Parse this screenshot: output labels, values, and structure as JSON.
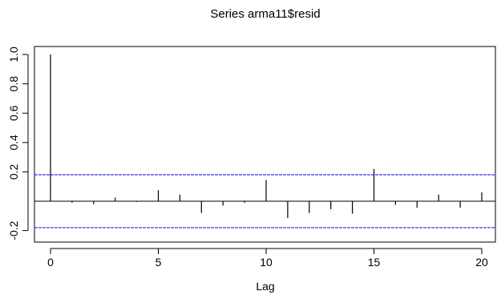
{
  "chart_data": {
    "type": "acf",
    "title": "Series  arma11$resid",
    "xlabel": "Lag",
    "ylabel": "",
    "xlim": [
      -0.5,
      20.3
    ],
    "ylim": [
      -0.2,
      1.0
    ],
    "x_ticks": [
      0,
      5,
      10,
      15,
      20
    ],
    "y_ticks": [
      -0.2,
      0.2,
      0.4,
      0.6,
      0.8,
      1.0
    ],
    "y_tick_labels": [
      "-0.2",
      "0.2",
      "0.4",
      "0.6",
      "0.8",
      "1.0"
    ],
    "confidence_bound": 0.18,
    "confidence_color": "#0000ff",
    "lags": [
      0,
      1,
      2,
      3,
      4,
      5,
      6,
      7,
      8,
      9,
      10,
      11,
      12,
      13,
      14,
      15,
      16,
      17,
      18,
      19,
      20
    ],
    "values": [
      1.0,
      -0.01,
      -0.02,
      0.025,
      -0.005,
      0.075,
      0.045,
      -0.08,
      -0.03,
      -0.01,
      0.145,
      -0.115,
      -0.08,
      -0.055,
      -0.085,
      0.22,
      -0.025,
      -0.045,
      0.045,
      -0.045,
      0.06
    ],
    "grid": false,
    "legend": "none"
  }
}
